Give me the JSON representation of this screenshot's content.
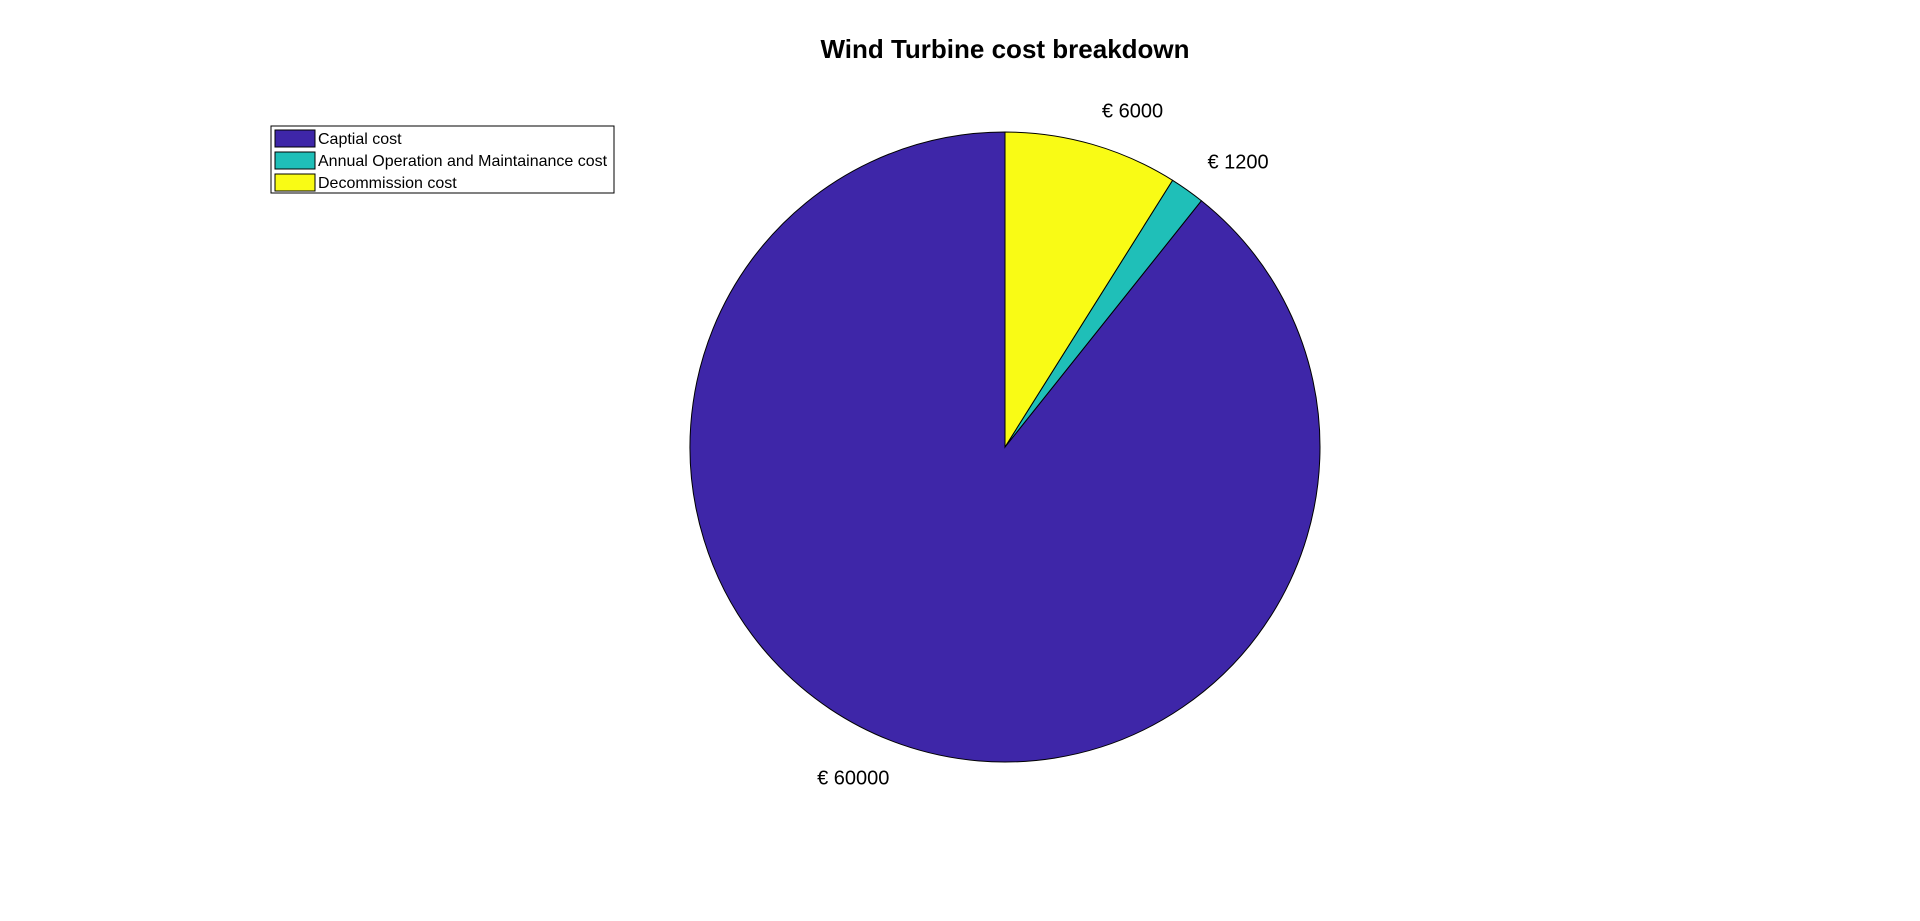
{
  "chart_data": {
    "type": "pie",
    "title": "Wind Turbine cost breakdown",
    "categories": [
      "Captial cost",
      "Annual Operation and Maintainance cost",
      "Decommission cost"
    ],
    "values": [
      60000,
      1200,
      6000
    ],
    "data_labels": [
      "€ 60000",
      "€ 1200",
      "€ 6000"
    ],
    "colors": [
      "#3e26a8",
      "#1fbfb8",
      "#f9fb15"
    ],
    "start_angle_deg": 90,
    "direction": "clockwise-from-top-reversed",
    "legend": {
      "placement": "top-left",
      "entries": [
        "Captial cost",
        "Annual Operation and Maintainance cost",
        "Decommission cost"
      ]
    }
  }
}
